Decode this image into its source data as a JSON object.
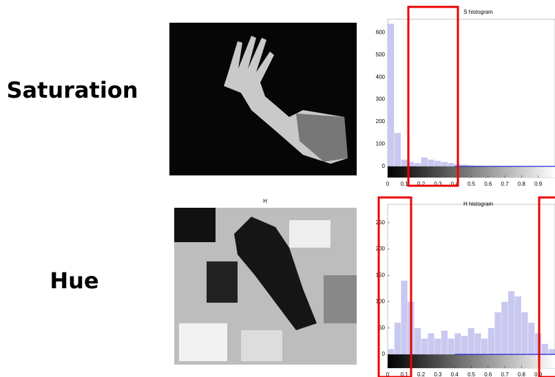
{
  "labels": {
    "saturation": "Saturation",
    "hue": "Hue",
    "h_image_title": "H"
  },
  "chart_data": [
    {
      "type": "histogram",
      "title": "S histogram",
      "color": "#c8c8f0",
      "bins": [
        0,
        0.04,
        0.08,
        0.12,
        0.16,
        0.2,
        0.24,
        0.28,
        0.32,
        0.36,
        0.4,
        0.44,
        0.48,
        0.52,
        0.56,
        0.6,
        0.64,
        0.68,
        0.72,
        0.76,
        0.8,
        0.84,
        0.88,
        0.92,
        0.96,
        1
      ],
      "values": [
        640,
        150,
        30,
        20,
        15,
        40,
        30,
        25,
        20,
        15,
        10,
        8,
        5,
        3,
        2,
        2,
        2,
        2,
        2,
        2,
        2,
        2,
        2,
        2,
        2
      ],
      "xlim": [
        0,
        1
      ],
      "ylim": [
        -50,
        660
      ],
      "xticks": [
        0,
        0.1,
        0.2,
        0.3,
        0.4,
        0.5,
        0.6,
        0.7,
        0.8,
        0.9
      ],
      "yticks": [
        0,
        100,
        200,
        300,
        400,
        500,
        600
      ]
    },
    {
      "type": "histogram",
      "title": "H histogram",
      "color": "#c8c8f0",
      "bins": [
        0,
        0.04,
        0.08,
        0.12,
        0.16,
        0.2,
        0.24,
        0.28,
        0.32,
        0.36,
        0.4,
        0.44,
        0.48,
        0.52,
        0.56,
        0.6,
        0.64,
        0.68,
        0.72,
        0.76,
        0.8,
        0.84,
        0.88,
        0.92,
        0.96,
        1
      ],
      "values": [
        10,
        60,
        140,
        100,
        50,
        30,
        40,
        30,
        45,
        30,
        40,
        35,
        50,
        40,
        30,
        50,
        80,
        100,
        120,
        110,
        80,
        60,
        40,
        20,
        10
      ],
      "xlim": [
        0,
        1
      ],
      "ylim": [
        -26,
        285
      ],
      "xticks": [
        0,
        0.1,
        0.2,
        0.3,
        0.4,
        0.5,
        0.6,
        0.7,
        0.8,
        0.9
      ],
      "yticks": [
        0,
        50,
        100,
        150,
        200,
        250
      ]
    }
  ]
}
